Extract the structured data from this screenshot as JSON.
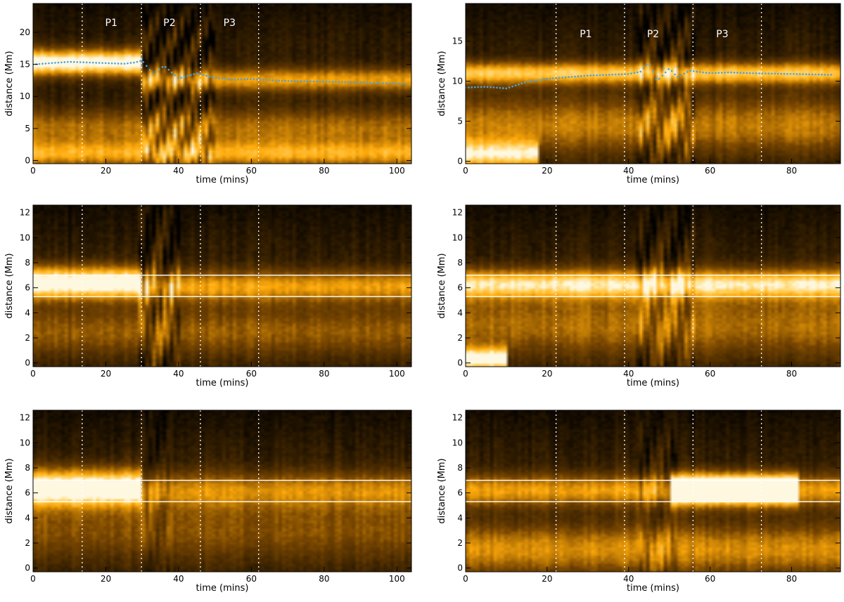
{
  "chart_data": [
    {
      "type": "heatmap",
      "xlabel": "time (mins)",
      "ylabel": "distance (Mm)",
      "xlim": [
        0,
        104
      ],
      "ylim": [
        -0.5,
        24.5
      ],
      "xticks": [
        0,
        20,
        40,
        60,
        80,
        100
      ],
      "yticks": [
        0,
        5,
        10,
        15,
        20
      ],
      "vlines": [
        13.5,
        29.8,
        46,
        62
      ],
      "phase_labels": [
        {
          "text": "P1",
          "x": 21.5,
          "y": 21
        },
        {
          "text": "P2",
          "x": 37.5,
          "y": 21
        },
        {
          "text": "P3",
          "x": 54,
          "y": 21
        }
      ],
      "track": {
        "color": "#4aa3df",
        "times": [
          0,
          5,
          10,
          15,
          20,
          25,
          28,
          30,
          33,
          36,
          40,
          45,
          50,
          55,
          60,
          70,
          80,
          90,
          100,
          103
        ],
        "distances": [
          15.0,
          15.2,
          15.4,
          15.3,
          15.2,
          15.1,
          15.3,
          15.6,
          13.5,
          14.8,
          12.8,
          13.6,
          12.9,
          12.6,
          12.7,
          12.4,
          12.3,
          12.2,
          12.0,
          11.9
        ]
      },
      "bands": [
        {
          "t0": 0,
          "t1": 30,
          "y": 15.3,
          "w": 2.0,
          "a": 0.95
        },
        {
          "t0": 30,
          "t1": 104,
          "y": 12.6,
          "w": 1.8,
          "a": 0.55
        },
        {
          "t0": 0,
          "t1": 104,
          "y": 5.0,
          "w": 3.0,
          "a": 0.4
        },
        {
          "t0": 0,
          "t1": 104,
          "y": 1.0,
          "w": 2.0,
          "a": 0.55
        }
      ],
      "osc": {
        "t0": 30,
        "t1": 50,
        "amp": 0.9
      }
    },
    {
      "type": "heatmap",
      "xlabel": "time (mins)",
      "ylabel": "distance (Mm)",
      "xlim": [
        0,
        92
      ],
      "ylim": [
        -0.3,
        19.7
      ],
      "xticks": [
        0,
        20,
        40,
        60,
        80
      ],
      "yticks": [
        0,
        5,
        10,
        15
      ],
      "vlines": [
        22.2,
        39,
        55.8,
        72.6
      ],
      "phase_labels": [
        {
          "text": "P1",
          "x": 29.5,
          "y": 15.5
        },
        {
          "text": "P2",
          "x": 46,
          "y": 15.5
        },
        {
          "text": "P3",
          "x": 63,
          "y": 15.5
        }
      ],
      "track": {
        "color": "#4aa3df",
        "times": [
          0,
          5,
          10,
          15,
          20,
          25,
          30,
          35,
          40,
          43,
          45,
          47,
          50,
          52,
          55,
          60,
          65,
          70,
          80,
          90
        ],
        "distances": [
          9.2,
          9.3,
          9.1,
          9.9,
          10.3,
          10.5,
          10.7,
          10.8,
          10.9,
          11.2,
          12.4,
          10.0,
          11.6,
          10.5,
          11.3,
          11.0,
          11.1,
          11.0,
          10.9,
          10.8
        ]
      },
      "bands": [
        {
          "t0": 0,
          "t1": 92,
          "y": 11.0,
          "w": 1.4,
          "a": 0.7
        },
        {
          "t0": 0,
          "t1": 92,
          "y": 4.5,
          "w": 3.5,
          "a": 0.45
        },
        {
          "t0": 0,
          "t1": 18,
          "y": 0.8,
          "w": 1.8,
          "a": 0.7
        }
      ],
      "osc": {
        "t0": 42,
        "t1": 56,
        "amp": 0.8
      }
    },
    {
      "type": "heatmap",
      "xlabel": "time (mins)",
      "ylabel": "distance (Mm)",
      "xlim": [
        0,
        104
      ],
      "ylim": [
        -0.3,
        12.6
      ],
      "xticks": [
        0,
        20,
        40,
        60,
        80,
        100
      ],
      "yticks": [
        0,
        2,
        4,
        6,
        8,
        10,
        12
      ],
      "vlines": [
        13.5,
        29.8,
        46,
        62
      ],
      "hlines": [
        5.3,
        7.0
      ],
      "bands": [
        {
          "t0": 0,
          "t1": 30,
          "y": 6.4,
          "w": 1.3,
          "a": 1.0
        },
        {
          "t0": 30,
          "t1": 104,
          "y": 6.1,
          "w": 1.3,
          "a": 0.55
        },
        {
          "t0": 0,
          "t1": 104,
          "y": 2.5,
          "w": 2.0,
          "a": 0.35
        }
      ],
      "osc": {
        "t0": 29,
        "t1": 40,
        "amp": 0.9
      }
    },
    {
      "type": "heatmap",
      "xlabel": "time (mins)",
      "ylabel": "distance (Mm)",
      "xlim": [
        0,
        92
      ],
      "ylim": [
        -0.3,
        12.6
      ],
      "xticks": [
        0,
        20,
        40,
        60,
        80
      ],
      "yticks": [
        0,
        2,
        4,
        6,
        8,
        10,
        12
      ],
      "vlines": [
        22.2,
        39,
        55.8,
        72.6
      ],
      "hlines": [
        5.3,
        7.0
      ],
      "bands": [
        {
          "t0": 0,
          "t1": 92,
          "y": 6.3,
          "w": 1.2,
          "a": 0.75
        },
        {
          "t0": 0,
          "t1": 92,
          "y": 3.0,
          "w": 2.5,
          "a": 0.4
        },
        {
          "t0": 0,
          "t1": 10,
          "y": 0.3,
          "w": 0.9,
          "a": 0.9
        }
      ],
      "osc": {
        "t0": 42,
        "t1": 56,
        "amp": 0.7
      }
    },
    {
      "type": "heatmap",
      "xlabel": "time (mins)",
      "ylabel": "distance (Mm)",
      "xlim": [
        0,
        104
      ],
      "ylim": [
        -0.3,
        12.6
      ],
      "xticks": [
        0,
        20,
        40,
        60,
        80,
        100
      ],
      "yticks": [
        0,
        2,
        4,
        6,
        8,
        10,
        12
      ],
      "vlines": [
        13.5,
        29.8,
        46,
        62
      ],
      "hlines": [
        5.3,
        7.0
      ],
      "bands": [
        {
          "t0": 0,
          "t1": 30,
          "y": 6.4,
          "w": 1.5,
          "a": 1.0
        },
        {
          "t0": 30,
          "t1": 104,
          "y": 6.2,
          "w": 1.5,
          "a": 0.45
        },
        {
          "t0": 0,
          "t1": 104,
          "y": 3.0,
          "w": 2.5,
          "a": 0.3
        }
      ],
      "osc": {
        "t0": 30,
        "t1": 38,
        "amp": 0.4
      }
    },
    {
      "type": "heatmap",
      "xlabel": "time (mins)",
      "ylabel": "distance (Mm)",
      "xlim": [
        0,
        92
      ],
      "ylim": [
        -0.3,
        12.6
      ],
      "xticks": [
        0,
        20,
        40,
        60,
        80
      ],
      "yticks": [
        0,
        2,
        4,
        6,
        8,
        10,
        12
      ],
      "vlines": [
        22.2,
        39,
        55.8,
        72.6
      ],
      "hlines": [
        5.3,
        7.0
      ],
      "bands": [
        {
          "t0": 50,
          "t1": 82,
          "y": 6.3,
          "w": 1.1,
          "a": 1.0
        },
        {
          "t0": 0,
          "t1": 92,
          "y": 6.2,
          "w": 1.3,
          "a": 0.55
        },
        {
          "t0": 0,
          "t1": 92,
          "y": 1.5,
          "w": 2.0,
          "a": 0.5
        }
      ],
      "osc": {
        "t0": 42,
        "t1": 52,
        "amp": 0.5
      }
    }
  ],
  "colors": {
    "heat_dark": "#000000",
    "heat_mid": "#b36b00",
    "heat_bright": "#ffb10a",
    "heat_white": "#fff6dc",
    "guide_lines": "#ffffff",
    "track": "#4aa3df"
  }
}
